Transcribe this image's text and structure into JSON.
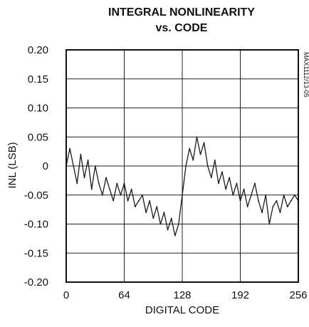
{
  "chart_data": {
    "type": "line",
    "title": "INTEGRAL NONLINEARITY",
    "subtitle": "vs. CODE",
    "xlabel": "DIGITAL CODE",
    "ylabel": "INL (LSB)",
    "figure_id": "MAX1112/13-05",
    "xlim": [
      0,
      256
    ],
    "ylim": [
      -0.2,
      0.2
    ],
    "x_ticks": [
      0,
      64,
      128,
      192,
      256
    ],
    "x_tick_labels": [
      "0",
      "64",
      "128",
      "192",
      "256"
    ],
    "y_ticks": [
      0.2,
      0.15,
      0.1,
      0.05,
      0,
      -0.05,
      -0.1,
      -0.15,
      -0.2
    ],
    "y_tick_labels": [
      "0.20",
      "0.15",
      "0.10",
      "0.05",
      "0",
      "-0.05",
      "-0.10",
      "-0.15",
      "-0.20"
    ],
    "grid": true,
    "legend": "none",
    "series": [
      {
        "color": "#1a1a1a",
        "x": [
          0,
          4,
          8,
          12,
          16,
          20,
          24,
          28,
          32,
          36,
          40,
          44,
          48,
          52,
          56,
          60,
          64,
          68,
          72,
          76,
          80,
          84,
          88,
          92,
          96,
          100,
          104,
          108,
          112,
          116,
          120,
          124,
          128,
          132,
          136,
          140,
          144,
          148,
          152,
          156,
          160,
          164,
          168,
          172,
          176,
          180,
          184,
          188,
          192,
          196,
          200,
          204,
          208,
          212,
          216,
          220,
          224,
          228,
          232,
          236,
          240,
          244,
          248,
          252,
          256
        ],
        "y": [
          0.0,
          0.03,
          0.0,
          -0.03,
          0.02,
          -0.02,
          0.01,
          -0.04,
          0.0,
          -0.03,
          -0.05,
          -0.02,
          -0.04,
          -0.06,
          -0.03,
          -0.05,
          -0.03,
          -0.06,
          -0.04,
          -0.07,
          -0.06,
          -0.05,
          -0.08,
          -0.06,
          -0.09,
          -0.07,
          -0.1,
          -0.08,
          -0.11,
          -0.09,
          -0.12,
          -0.1,
          -0.05,
          0.0,
          0.03,
          0.01,
          0.05,
          0.02,
          0.04,
          0.0,
          -0.02,
          0.01,
          -0.03,
          -0.01,
          -0.04,
          -0.02,
          -0.05,
          -0.03,
          -0.06,
          -0.04,
          -0.07,
          -0.05,
          -0.03,
          -0.06,
          -0.08,
          -0.05,
          -0.1,
          -0.07,
          -0.06,
          -0.08,
          -0.05,
          -0.07,
          -0.06,
          -0.05,
          -0.06
        ]
      }
    ]
  }
}
